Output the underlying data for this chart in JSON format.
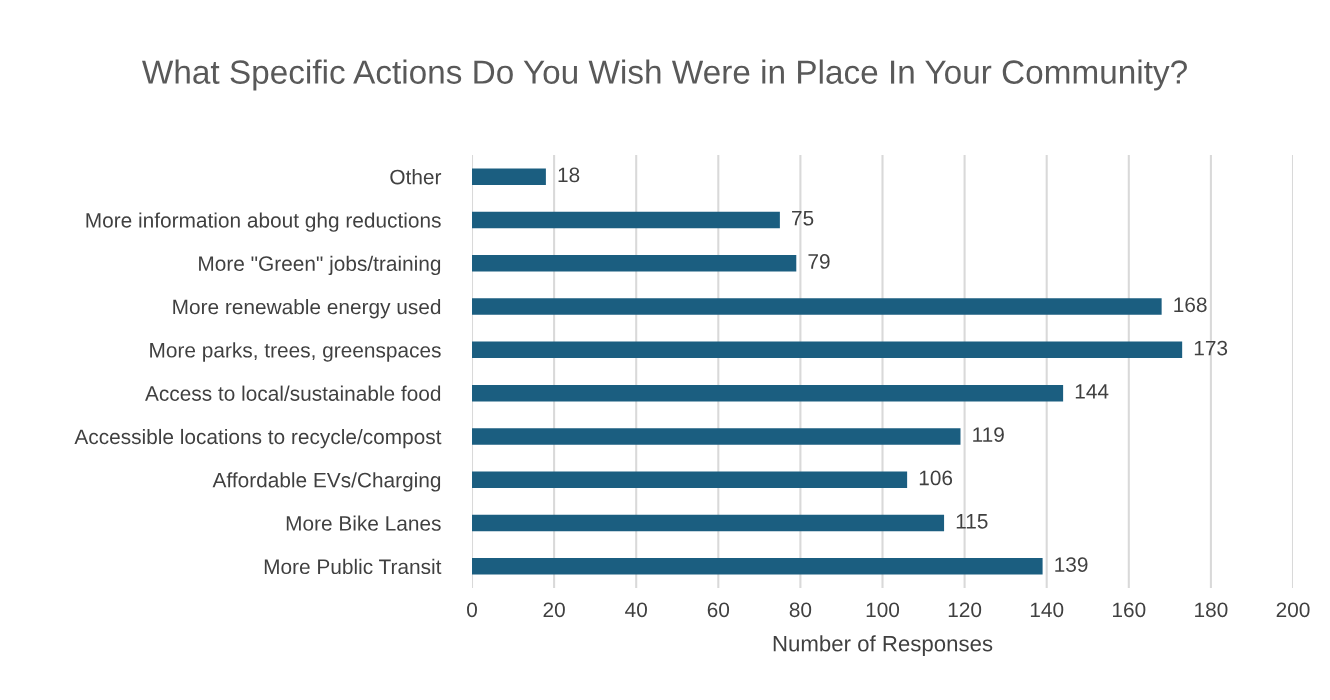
{
  "chart_data": {
    "type": "bar",
    "orientation": "horizontal",
    "title": "What Specific Actions Do You Wish Were in Place In Your Community?",
    "xlabel": "Number of Responses",
    "categories": [
      "Other",
      "More information about ghg reductions",
      "More \"Green\" jobs/training",
      "More renewable energy used",
      "More parks, trees, greenspaces",
      "Access to local/sustainable food",
      "Accessible locations to recycle/compost",
      "Affordable EVs/Charging",
      "More Bike Lanes",
      "More Public Transit"
    ],
    "values": [
      18,
      75,
      79,
      168,
      173,
      144,
      119,
      106,
      115,
      139
    ],
    "color": "#1b5e80",
    "xlim": [
      0,
      200
    ],
    "xticks": [
      0,
      20,
      40,
      60,
      80,
      100,
      120,
      140,
      160,
      180,
      200
    ],
    "grid": "x",
    "data_labels": true
  }
}
